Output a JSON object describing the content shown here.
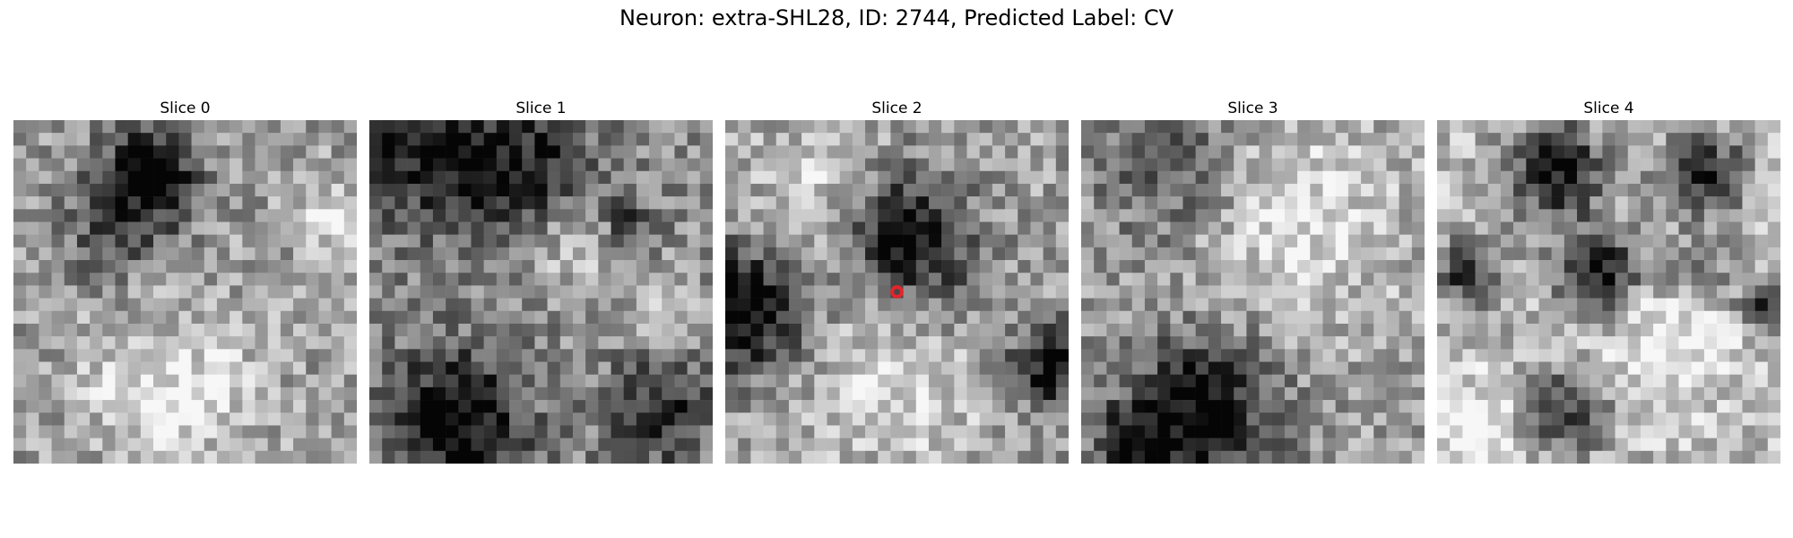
{
  "figure": {
    "title": "Neuron: extra-SHL28, ID: 2744, Predicted Label: CV"
  },
  "marker_color": "#e3242b",
  "panels": [
    {
      "title": "Slice 0",
      "blobs": [
        [
          0.4,
          0.15,
          0.14,
          0.55
        ],
        [
          0.3,
          0.3,
          0.18,
          0.3
        ],
        [
          0.45,
          0.7,
          0.12,
          0.25
        ]
      ],
      "brights": [
        [
          0.45,
          0.75,
          0.2,
          0.45
        ],
        [
          0.92,
          0.28,
          0.08,
          0.35
        ]
      ],
      "base": 0.62,
      "seed": 11
    },
    {
      "title": "Slice 1",
      "blobs": [
        [
          0.15,
          0.1,
          0.2,
          0.45
        ],
        [
          0.45,
          0.15,
          0.2,
          0.45
        ],
        [
          0.25,
          0.88,
          0.2,
          0.6
        ],
        [
          0.85,
          0.85,
          0.15,
          0.4
        ],
        [
          0.75,
          0.3,
          0.08,
          0.35
        ]
      ],
      "brights": [
        [
          0.6,
          0.35,
          0.15,
          0.3
        ],
        [
          0.85,
          0.55,
          0.1,
          0.25
        ]
      ],
      "base": 0.55,
      "seed": 23
    },
    {
      "title": "Slice 2",
      "blobs": [
        [
          0.5,
          0.3,
          0.18,
          0.5
        ],
        [
          0.05,
          0.55,
          0.18,
          0.7
        ],
        [
          0.95,
          0.72,
          0.12,
          0.6
        ],
        [
          0.6,
          0.45,
          0.18,
          0.25
        ]
      ],
      "brights": [
        [
          0.3,
          0.2,
          0.2,
          0.25
        ],
        [
          0.5,
          0.75,
          0.25,
          0.25
        ]
      ],
      "base": 0.62,
      "seed": 37,
      "marker": [
        0.5,
        0.5
      ]
    },
    {
      "title": "Slice 3",
      "blobs": [
        [
          0.35,
          0.85,
          0.22,
          0.6
        ],
        [
          0.25,
          0.15,
          0.2,
          0.3
        ],
        [
          0.15,
          0.95,
          0.12,
          0.4
        ]
      ],
      "brights": [
        [
          0.65,
          0.3,
          0.3,
          0.25
        ]
      ],
      "base": 0.62,
      "seed": 53
    },
    {
      "title": "Slice 4",
      "blobs": [
        [
          0.35,
          0.15,
          0.14,
          0.65
        ],
        [
          0.78,
          0.15,
          0.12,
          0.55
        ],
        [
          0.47,
          0.45,
          0.12,
          0.7
        ],
        [
          0.08,
          0.45,
          0.1,
          0.5
        ],
        [
          0.38,
          0.85,
          0.12,
          0.5
        ],
        [
          0.95,
          0.55,
          0.08,
          0.55
        ],
        [
          0.75,
          0.45,
          0.12,
          0.35
        ]
      ],
      "brights": [
        [
          0.7,
          0.6,
          0.2,
          0.3
        ],
        [
          0.1,
          0.9,
          0.15,
          0.2
        ]
      ],
      "base": 0.72,
      "seed": 71
    }
  ]
}
